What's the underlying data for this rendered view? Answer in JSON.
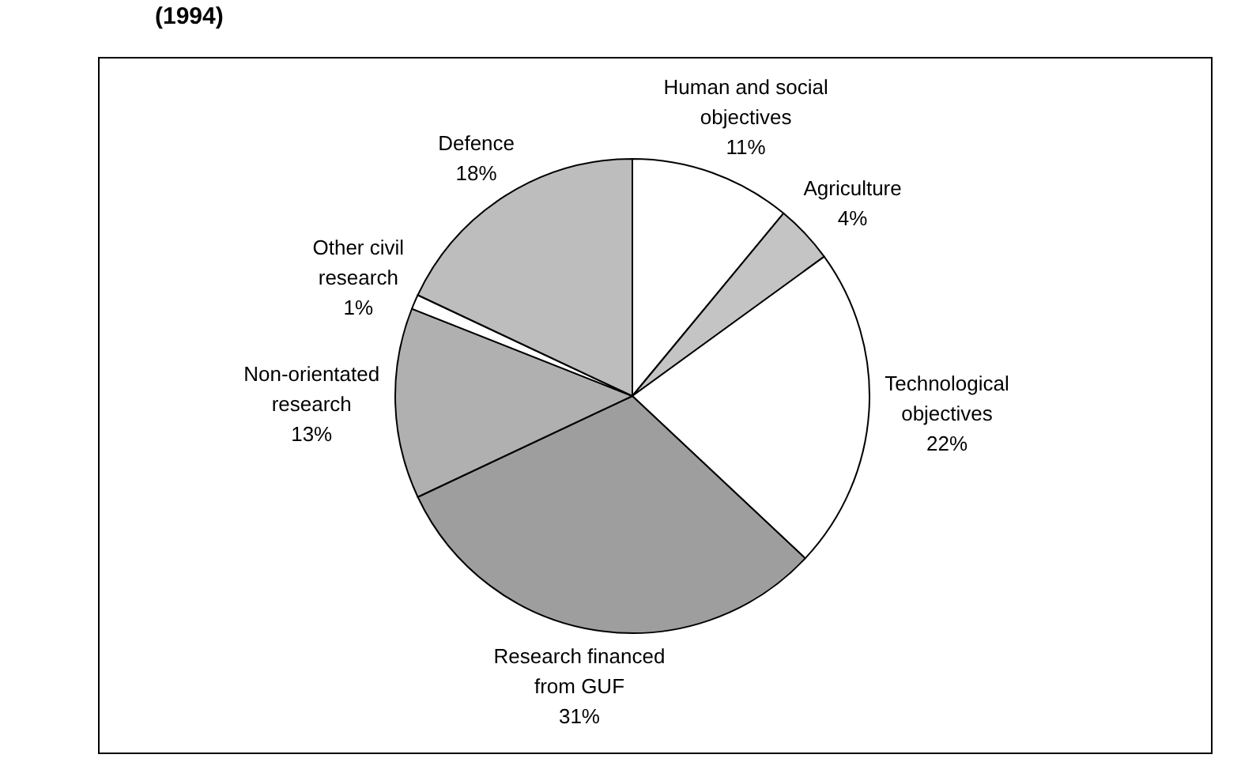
{
  "chart_data": {
    "type": "pie",
    "title": "(1994)",
    "categories": [
      "Human and social\nobjectives",
      "Agriculture",
      "Technological\nobjectives",
      "Research financed\nfrom GUF",
      "Non-orientated\nresearch",
      "Other civil\nresearch",
      "Defence"
    ],
    "values": [
      11,
      4,
      22,
      31,
      13,
      1,
      18
    ],
    "colors": [
      "#ffffff",
      "#c4c4c4",
      "#ffffff",
      "#9e9e9e",
      "#b0b0b0",
      "#ffffff",
      "#bdbdbd"
    ],
    "value_labels": [
      "11%",
      "4%",
      "22%",
      "31%",
      "13%",
      "1%",
      "18%"
    ]
  }
}
